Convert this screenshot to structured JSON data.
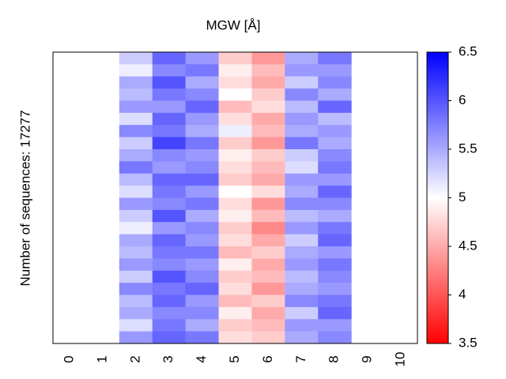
{
  "chart_data": {
    "type": "heatmap",
    "title": "MGW [Å]",
    "ylabel": "Number of sequences: 17277",
    "x": [
      0,
      1,
      2,
      3,
      4,
      5,
      6,
      7,
      8,
      9,
      10
    ],
    "colormap": [
      "#ff0000",
      "#ffffff",
      "#0000ff"
    ],
    "clim": [
      3.5,
      6.5
    ],
    "cticks": [
      3.5,
      4,
      4.5,
      5,
      5.5,
      6,
      6.5
    ],
    "values": [
      [
        null,
        null,
        5.3,
        5.9,
        5.6,
        4.7,
        4.4,
        5.5,
        5.8,
        null,
        null
      ],
      [
        null,
        null,
        5.1,
        5.7,
        5.8,
        4.9,
        4.6,
        5.6,
        5.6,
        null,
        null
      ],
      [
        null,
        null,
        5.5,
        6.0,
        5.5,
        4.8,
        4.5,
        5.3,
        5.7,
        null,
        null
      ],
      [
        null,
        null,
        5.4,
        5.8,
        5.7,
        5.0,
        4.7,
        5.7,
        5.5,
        null,
        null
      ],
      [
        null,
        null,
        5.6,
        5.6,
        5.9,
        4.6,
        4.8,
        5.4,
        5.9,
        null,
        null
      ],
      [
        null,
        null,
        5.2,
        5.9,
        5.6,
        4.8,
        4.5,
        5.6,
        5.4,
        null,
        null
      ],
      [
        null,
        null,
        5.7,
        5.8,
        5.5,
        5.1,
        4.6,
        5.5,
        5.6,
        null,
        null
      ],
      [
        null,
        null,
        5.3,
        6.1,
        5.8,
        4.7,
        4.4,
        5.8,
        5.5,
        null,
        null
      ],
      [
        null,
        null,
        5.5,
        5.7,
        5.6,
        4.9,
        4.7,
        5.3,
        5.7,
        null,
        null
      ],
      [
        null,
        null,
        5.8,
        5.6,
        5.7,
        4.8,
        4.6,
        5.2,
        5.8,
        null,
        null
      ],
      [
        null,
        null,
        5.4,
        5.9,
        5.9,
        4.7,
        4.5,
        5.6,
        5.6,
        null,
        null
      ],
      [
        null,
        null,
        5.2,
        5.8,
        5.6,
        5.0,
        4.8,
        5.5,
        5.9,
        null,
        null
      ],
      [
        null,
        null,
        5.6,
        5.7,
        5.8,
        4.8,
        4.4,
        5.7,
        5.7,
        null,
        null
      ],
      [
        null,
        null,
        5.3,
        6.0,
        5.5,
        4.9,
        4.6,
        5.4,
        5.5,
        null,
        null
      ],
      [
        null,
        null,
        5.1,
        5.6,
        5.7,
        4.7,
        4.3,
        5.6,
        5.8,
        null,
        null
      ],
      [
        null,
        null,
        5.5,
        5.9,
        5.6,
        4.8,
        4.5,
        5.3,
        5.9,
        null,
        null
      ],
      [
        null,
        null,
        5.4,
        5.8,
        5.8,
        4.6,
        4.7,
        5.5,
        5.6,
        null,
        null
      ],
      [
        null,
        null,
        5.6,
        5.7,
        5.6,
        4.9,
        4.5,
        5.6,
        5.8,
        null,
        null
      ],
      [
        null,
        null,
        5.3,
        6.0,
        5.7,
        4.7,
        4.6,
        5.4,
        5.7,
        null,
        null
      ],
      [
        null,
        null,
        5.7,
        5.8,
        5.9,
        4.8,
        4.4,
        5.5,
        5.6,
        null,
        null
      ],
      [
        null,
        null,
        5.4,
        5.9,
        5.6,
        4.6,
        4.7,
        5.7,
        5.8,
        null,
        null
      ],
      [
        null,
        null,
        5.5,
        5.7,
        5.7,
        4.9,
        4.5,
        5.3,
        5.9,
        null,
        null
      ],
      [
        null,
        null,
        5.2,
        5.8,
        5.5,
        4.7,
        4.6,
        5.6,
        5.6,
        null,
        null
      ],
      [
        null,
        null,
        5.6,
        5.9,
        5.8,
        4.8,
        4.7,
        5.5,
        5.7,
        null,
        null
      ]
    ]
  }
}
